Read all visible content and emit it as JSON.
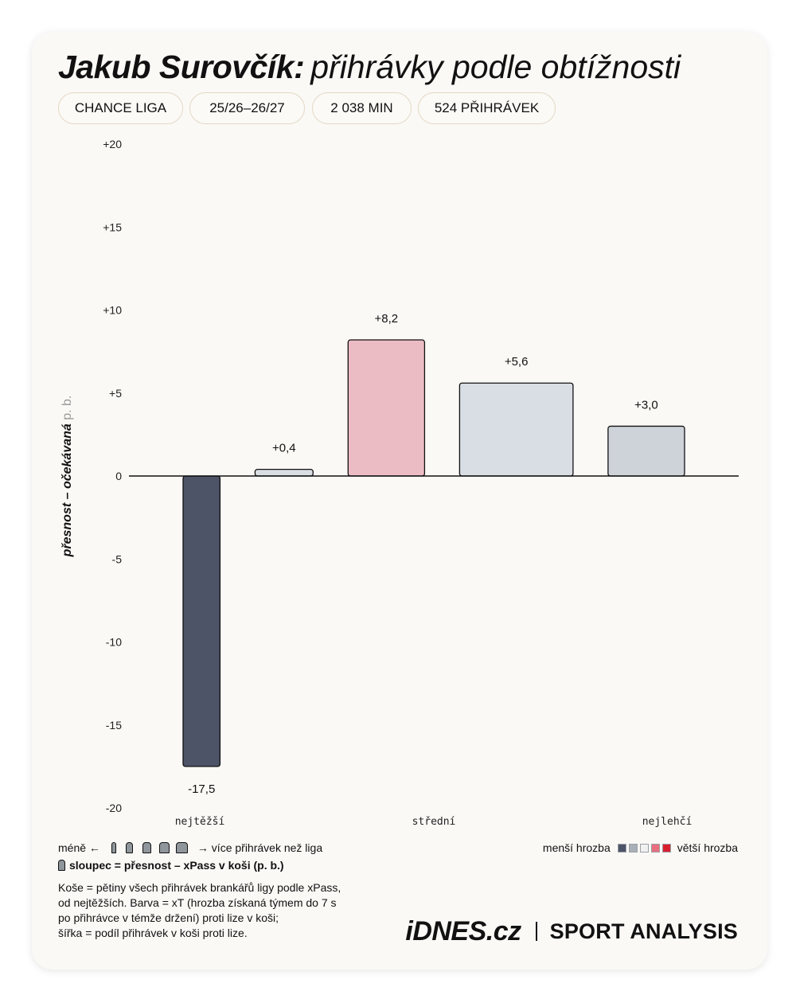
{
  "header": {
    "title_name": "Jakub Surovčík:",
    "title_sub": "přihrávky podle obtížnosti"
  },
  "pills": [
    {
      "label": "CHANCE LIGA"
    },
    {
      "label": "25/26–26/27"
    },
    {
      "label": "2 038 MIN"
    },
    {
      "label": "524 PŘIHRÁVEK"
    }
  ],
  "chart_data": {
    "type": "bar",
    "ylabel_main": "přesnost – očekávaná",
    "ylabel_unit": "p. b.",
    "ylim": [
      -20,
      20
    ],
    "yticks": [
      "+20",
      "+15",
      "+10",
      "+5",
      "0",
      "-5",
      "-10",
      "-15",
      "-20"
    ],
    "ytick_values": [
      20,
      15,
      10,
      5,
      0,
      -5,
      -10,
      -15,
      -20
    ],
    "x_axis_labels": [
      "nejtěžší",
      "střední",
      "nejlehčí"
    ],
    "bars": [
      {
        "value": -17.5,
        "label": "-17,5",
        "color": "#4e5468"
      },
      {
        "value": 0.4,
        "label": "+0,4",
        "color": "#d8dee4"
      },
      {
        "value": 8.2,
        "label": "+8,2",
        "color": "#ecbcc4"
      },
      {
        "value": 5.6,
        "label": "+5,6",
        "color": "#d8dee4"
      },
      {
        "value": 3.0,
        "label": "+3,0",
        "color": "#cdd3d9"
      }
    ],
    "share_of_passes_vs_league": [
      0.7,
      1.1,
      1.45,
      2.15,
      1.45
    ],
    "grid": false
  },
  "legend": {
    "count_prefix": "méně ←",
    "count_suffix": "→ více přihrávek než liga",
    "column_text": "sloupec = přesnost – xPass v koši (p. b.)",
    "threat_low": "menší hrozba",
    "threat_high": "větší hrozba",
    "threat_colors": [
      "#4e5468",
      "#a9b0b8",
      "#f1f1f1",
      "#e8707f",
      "#d8202f"
    ]
  },
  "note": {
    "lines": [
      "Koše = pětiny všech přihrávek brankářů ligy podle xPass,",
      "od nejtěžších. Barva = xT (hrozba získaná týmem do 7 s",
      "po přihrávce v témže držení) proti lize v koši;",
      "šířka = podíl přihrávek v koši proti lize."
    ]
  },
  "brand": {
    "logo": "iDNES.cz",
    "tagline": "SPORT ANALYSIS"
  }
}
